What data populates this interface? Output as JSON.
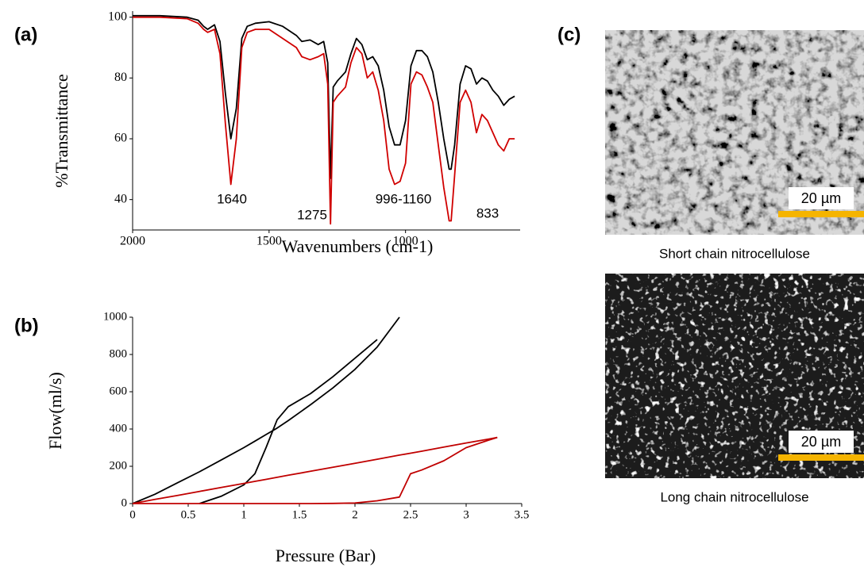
{
  "chart_data": [
    {
      "type": "line",
      "panel": "(a)",
      "ylabel": "%Transmittance",
      "xlabel": "Wavenumbers (cm-1)",
      "x": [
        2000,
        1900,
        1800,
        1760,
        1740,
        1725,
        1700,
        1680,
        1660,
        1640,
        1620,
        1600,
        1580,
        1550,
        1500,
        1450,
        1400,
        1380,
        1350,
        1320,
        1300,
        1285,
        1275,
        1265,
        1250,
        1220,
        1200,
        1180,
        1160,
        1140,
        1120,
        1100,
        1080,
        1060,
        1040,
        1020,
        1000,
        980,
        960,
        940,
        920,
        900,
        880,
        860,
        840,
        833,
        820,
        800,
        780,
        760,
        740,
        720,
        700,
        680,
        660,
        640,
        620,
        600
      ],
      "series": [
        {
          "color": "#000000",
          "values": [
            100.5,
            100.5,
            100,
            99,
            97,
            96,
            97.5,
            92,
            75,
            60,
            70,
            93,
            97,
            98,
            98.5,
            97,
            94,
            92,
            92.5,
            91,
            92,
            85,
            47,
            77,
            79,
            82,
            88,
            93,
            91,
            86,
            87,
            84,
            76,
            64,
            58,
            58,
            66,
            84,
            89,
            89,
            87,
            82,
            72,
            60,
            50,
            50,
            58,
            78,
            84,
            83,
            78,
            80,
            79,
            76,
            74,
            71,
            73,
            74
          ]
        },
        {
          "color": "#d00000",
          "values": [
            100,
            100,
            99.5,
            98,
            96,
            95,
            96,
            88,
            65,
            45,
            60,
            90,
            95,
            96,
            96,
            93,
            90,
            87,
            86,
            87,
            88,
            78,
            32,
            72,
            74,
            77,
            85,
            90,
            88,
            80,
            82,
            76,
            66,
            50,
            45,
            46,
            52,
            78,
            82,
            81,
            77,
            72,
            58,
            44,
            33,
            33,
            48,
            72,
            76,
            72,
            62,
            68,
            66,
            62,
            58,
            56,
            60,
            60
          ]
        }
      ],
      "xlim": [
        2000,
        580
      ],
      "ylim": [
        30,
        102
      ],
      "xticks": [
        2000,
        1500,
        1000
      ],
      "yticks": [
        40,
        60,
        80,
        100
      ],
      "annotations": [
        "1640",
        "1275",
        "996-1160",
        "833"
      ]
    },
    {
      "type": "line",
      "panel": "(b)",
      "ylabel": "Flow(ml/s)",
      "xlabel": "Pressure (Bar)",
      "x": [
        0,
        0.2,
        0.4,
        0.6,
        0.8,
        1.0,
        1.1,
        1.2,
        1.3,
        1.4,
        1.6,
        1.8,
        2.0,
        2.2,
        2.4,
        2.5,
        2.6,
        2.8,
        3.0,
        3.2,
        3.28
      ],
      "series": [
        {
          "color": "#000000",
          "values": [
            0,
            50,
            110,
            170,
            235,
            300,
            335,
            370,
            405,
            445,
            530,
            620,
            720,
            840,
            1000,
            null,
            null,
            null,
            null,
            null,
            null
          ]
        },
        {
          "color": "#000000",
          "values": [
            null,
            null,
            null,
            0,
            40,
            100,
            160,
            300,
            450,
            520,
            590,
            680,
            780,
            880,
            null,
            null,
            null,
            null,
            null,
            null,
            null
          ]
        },
        {
          "color": "#c00000",
          "values": [
            0,
            22,
            43,
            65,
            87,
            108,
            119,
            130,
            141,
            152,
            173,
            195,
            216,
            238,
            260,
            270,
            281,
            303,
            325,
            346,
            355
          ]
        },
        {
          "color": "#c00000",
          "values": [
            0,
            0,
            0,
            0,
            0,
            0,
            0,
            0,
            0,
            0,
            0,
            1,
            3,
            15,
            35,
            160,
            180,
            230,
            300,
            340,
            355
          ]
        }
      ],
      "xlim": [
        0,
        3.5
      ],
      "ylim": [
        0,
        1000
      ],
      "xticks": [
        0,
        0.5,
        1,
        1.5,
        2,
        2.5,
        3,
        3.5
      ],
      "yticks": [
        0,
        200,
        400,
        600,
        800,
        1000
      ]
    }
  ],
  "images": {
    "panel": "(c)",
    "items": [
      {
        "caption": "Short chain nitrocellulose",
        "scale": "20 µm"
      },
      {
        "caption": "Long chain nitrocellulose",
        "scale": "20 µm"
      }
    ]
  }
}
